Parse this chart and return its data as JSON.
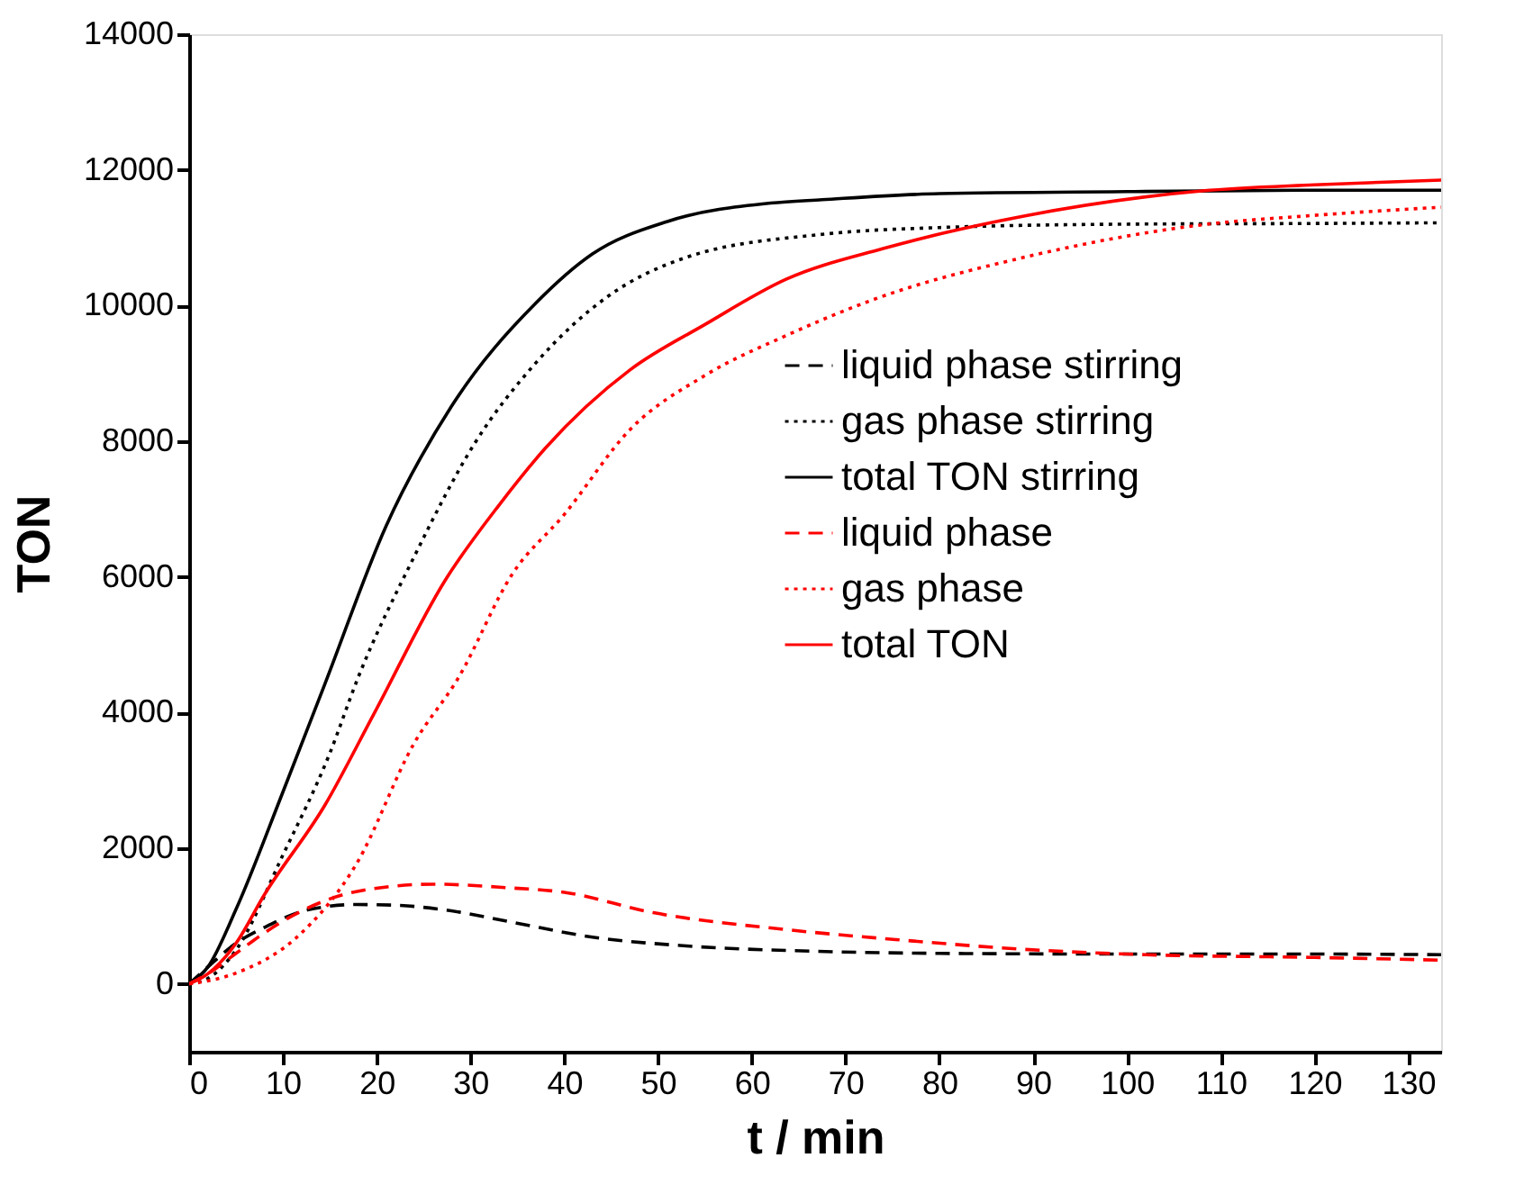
{
  "chart_data": {
    "type": "line",
    "xlabel": "t / min",
    "ylabel": "TON",
    "xlim": [
      0,
      133.5
    ],
    "xticks": [
      0,
      10,
      20,
      30,
      40,
      50,
      60,
      70,
      80,
      90,
      100,
      110,
      120,
      130
    ],
    "ylim": [
      -1000,
      14000
    ],
    "yticks": [
      0,
      2000,
      4000,
      6000,
      8000,
      10000,
      12000,
      14000
    ],
    "grid": false,
    "legend": "right",
    "marker": "none",
    "series": [
      {
        "name": "liquid phase stirring",
        "color": "#000000",
        "line_style": "dashed",
        "x": [
          0,
          2,
          5,
          8,
          12.6,
          17.8,
          22,
          27.3,
          34.4,
          43,
          53,
          67,
          80,
          100,
          120,
          133.5
        ],
        "values": [
          0,
          250,
          600,
          830,
          1090,
          1170,
          1160,
          1090,
          910,
          690,
          560,
          480,
          450,
          440,
          440,
          430
        ]
      },
      {
        "name": "gas phase stirring",
        "color": "#000000",
        "line_style": "dotted",
        "x": [
          0,
          2,
          5,
          10,
          15,
          18,
          24,
          30.5,
          37,
          44.5,
          53,
          67.5,
          80,
          100,
          120,
          133.5
        ],
        "values": [
          0,
          80,
          500,
          1900,
          3400,
          4510,
          6300,
          7980,
          9160,
          10120,
          10710,
          11050,
          11150,
          11200,
          11210,
          11220
        ]
      },
      {
        "name": "total TON stirring",
        "color": "#000000",
        "line_style": "solid",
        "x": [
          0,
          2,
          5,
          10,
          14.5,
          21,
          28,
          37,
          43,
          51,
          62,
          67.5,
          80,
          100,
          120,
          133.5
        ],
        "values": [
          0,
          250,
          1100,
          2830,
          4430,
          6750,
          8520,
          10040,
          10760,
          11240,
          11510,
          11560,
          11650,
          11680,
          11700,
          11700
        ]
      },
      {
        "name": "liquid phase",
        "color": "#ff0000",
        "line_style": "dashed",
        "x": [
          0,
          2,
          5,
          8,
          11.5,
          17.8,
          26,
          33.7,
          40,
          49.5,
          63.7,
          76.5,
          89,
          102,
          120,
          133.5
        ],
        "values": [
          0,
          150,
          450,
          750,
          1040,
          1360,
          1470,
          1420,
          1350,
          1050,
          800,
          640,
          510,
          430,
          390,
          350
        ]
      },
      {
        "name": "gas phase",
        "color": "#ff0000",
        "line_style": "dotted",
        "x": [
          0,
          5,
          11.5,
          17.8,
          24,
          28.7,
          34.4,
          40,
          47,
          55,
          63.7,
          73,
          89,
          108,
          120,
          133.5
        ],
        "values": [
          0,
          160,
          690,
          1760,
          3550,
          4510,
          6030,
          6920,
          8170,
          8970,
          9560,
          10090,
          10710,
          11190,
          11330,
          11450
        ]
      },
      {
        "name": "total TON",
        "color": "#ff0000",
        "line_style": "solid",
        "x": [
          0,
          2,
          5,
          8,
          14.5,
          19.7,
          27.3,
          33,
          38,
          47,
          55,
          63.7,
          74,
          89,
          108,
          120,
          133.5
        ],
        "values": [
          0,
          150,
          600,
          1310,
          2640,
          3980,
          5950,
          7050,
          7900,
          9050,
          9720,
          10390,
          10840,
          11320,
          11690,
          11780,
          11850
        ]
      }
    ]
  }
}
